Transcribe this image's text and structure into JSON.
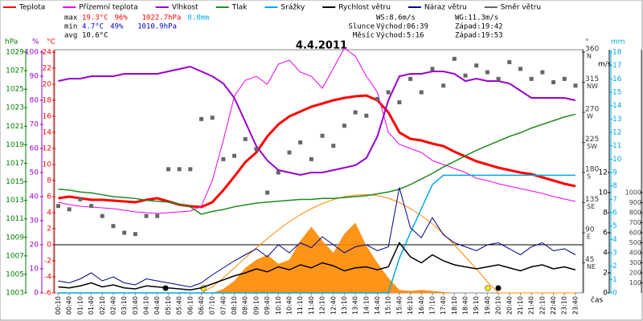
{
  "chart_data": {
    "type": "line",
    "title": "4.4.2011",
    "x_label": "čas",
    "x": [
      "00:10",
      "00:40",
      "01:10",
      "01:40",
      "02:10",
      "02:40",
      "03:10",
      "03:40",
      "04:10",
      "04:40",
      "05:10",
      "05:40",
      "06:10",
      "06:40",
      "07:10",
      "07:40",
      "08:10",
      "08:40",
      "09:10",
      "09:40",
      "10:10",
      "10:40",
      "11:10",
      "11:40",
      "12:10",
      "12:40",
      "13:10",
      "13:40",
      "14:10",
      "14:40",
      "15:10",
      "15:40",
      "16:10",
      "16:40",
      "17:10",
      "17:40",
      "18:10",
      "18:40",
      "19:10",
      "19:40",
      "20:10",
      "20:40",
      "21:10",
      "21:40",
      "22:10",
      "22:40",
      "23:10",
      "23:40"
    ],
    "stats": [
      {
        "label": "max",
        "values": [
          {
            "text": "19.3°C",
            "color": "#ff0000"
          },
          {
            "text": "96%",
            "color": "#ff0000"
          },
          {
            "text": "1022.7hPa",
            "color": "#ff0000"
          },
          {
            "text": "8.8mm",
            "color": "#00aadd"
          }
        ]
      },
      {
        "label": "min",
        "values": [
          {
            "text": "4.7°C",
            "color": "#0000cc"
          },
          {
            "text": "49%",
            "color": "#0000cc"
          },
          {
            "text": "1010.9hPa",
            "color": "#0000cc"
          }
        ]
      },
      {
        "label": "avg",
        "values": [
          {
            "text": "10.6°C",
            "color": "#000000"
          }
        ]
      }
    ],
    "info": [
      {
        "label": "",
        "rise": "WS:8.6m/s",
        "set": "WG:11.3m/s"
      },
      {
        "label": "Slunce",
        "rise": "Východ:06:39",
        "set": "Západ:19:42"
      },
      {
        "label": "Měsíc",
        "rise": "Východ:5:16",
        "set": "Západ:19:53"
      }
    ],
    "axes": [
      {
        "label": "hPa",
        "color": "#008000",
        "lim": [
          1003,
          1029
        ],
        "ticks": [
          1003,
          1005,
          1007,
          1009,
          1011,
          1013,
          1015,
          1017,
          1019,
          1021,
          1023,
          1025,
          1027,
          1029
        ]
      },
      {
        "label": "%",
        "color": "#9900cc",
        "lim": [
          0,
          100
        ],
        "ticks": [
          0,
          10,
          20,
          30,
          40,
          50,
          60,
          70,
          80,
          90,
          100
        ]
      },
      {
        "label": "°C",
        "color": "#ff0000",
        "lim": [
          -6,
          24
        ],
        "ticks": [
          -6,
          -4,
          -2,
          0,
          2,
          4,
          6,
          8,
          10,
          12,
          14,
          16,
          18,
          20,
          22,
          24
        ]
      },
      {
        "label": "°",
        "color": "#444444",
        "lim": [
          0,
          360
        ],
        "ticks": [
          {
            "value": 45,
            "label": "NE"
          },
          {
            "value": 90,
            "label": "E"
          },
          {
            "value": 135,
            "label": "SE"
          },
          {
            "value": 180,
            "label": "S"
          },
          {
            "value": 225,
            "label": "SW"
          },
          {
            "value": 270,
            "label": "W"
          },
          {
            "value": 315,
            "label": "NW"
          },
          {
            "value": 360,
            "label": "N"
          }
        ]
      },
      {
        "label": "m/s",
        "color": "#000000",
        "lim": [
          0,
          24
        ],
        "ticks": [
          0,
          2,
          4,
          6,
          8,
          10,
          12
        ]
      },
      {
        "label": "mm",
        "color": "#00aadd",
        "lim": [
          0,
          18
        ],
        "ticks": [
          0,
          1,
          2,
          3,
          4,
          5,
          6,
          7,
          8,
          9,
          10,
          11,
          12,
          13,
          14,
          15,
          16,
          17,
          18
        ]
      },
      {
        "color": "#444444",
        "lim": [
          0,
          2400
        ],
        "ticks": [
          100,
          200,
          300,
          400,
          500,
          600,
          700,
          800,
          900,
          1000
        ]
      }
    ],
    "series": [
      {
        "type": "area",
        "color": "#ff8800",
        "axis": 6,
        "values": [
          0,
          0,
          0,
          0,
          0,
          0,
          0,
          0,
          0,
          0,
          0,
          0,
          0,
          0,
          0,
          40,
          120,
          250,
          330,
          380,
          290,
          330,
          520,
          660,
          520,
          400,
          590,
          700,
          470,
          300,
          150,
          30,
          20,
          30,
          20,
          10,
          0,
          0,
          0,
          0,
          0,
          0,
          0,
          0,
          0,
          0,
          0,
          0
        ]
      },
      {
        "type": "line",
        "color": "#ff8800",
        "axis": 6,
        "values": [
          0,
          0,
          0,
          0,
          0,
          0,
          0,
          0,
          0,
          0,
          0,
          0,
          0,
          0,
          60,
          150,
          250,
          350,
          450,
          540,
          630,
          710,
          780,
          840,
          890,
          930,
          960,
          975,
          980,
          970,
          945,
          900,
          840,
          770,
          690,
          590,
          480,
          360,
          240,
          110,
          0,
          0,
          0,
          0,
          0,
          0,
          0,
          0
        ]
      },
      {
        "name": "Teplota",
        "type": "line",
        "color": "#ff0000",
        "axis": 2,
        "width": 3,
        "values": [
          5.8,
          6.0,
          5.8,
          5.6,
          5.6,
          5.5,
          5.4,
          5.3,
          5.6,
          5.8,
          5.4,
          5.0,
          4.8,
          4.7,
          5.3,
          6.8,
          8.5,
          10.3,
          11.5,
          13.5,
          15.0,
          16.0,
          16.6,
          17.2,
          17.6,
          18.0,
          18.3,
          18.5,
          18.6,
          18.0,
          16.5,
          14.0,
          13.2,
          13.0,
          12.6,
          12.3,
          11.6,
          11.0,
          10.4,
          10.0,
          9.6,
          9.3,
          9.0,
          8.8,
          8.4,
          8.0,
          7.6,
          7.3
        ]
      },
      {
        "name": "Přízemní teplota",
        "type": "line",
        "color": "#ee00ee",
        "axis": 2,
        "values": [
          5.3,
          5.0,
          4.8,
          4.7,
          4.6,
          4.5,
          4.3,
          4.1,
          4.0,
          3.9,
          4.0,
          4.1,
          4.2,
          4.8,
          8.0,
          13.0,
          18.5,
          20.5,
          21.0,
          20.0,
          22.5,
          23.0,
          21.5,
          21.0,
          19.5,
          22.0,
          24.5,
          23.5,
          21.0,
          19.0,
          14.0,
          12.5,
          12.0,
          11.5,
          10.5,
          10.0,
          9.5,
          9.0,
          8.3,
          8.0,
          7.6,
          7.3,
          7.0,
          6.7,
          6.4,
          6.0,
          5.7,
          5.4
        ]
      },
      {
        "name": "Vlhkost",
        "type": "line",
        "color": "#9900cc",
        "axis": 1,
        "width": 2,
        "values": [
          88,
          89,
          89,
          90,
          90,
          90,
          91,
          91,
          91,
          91,
          92,
          93,
          94,
          92,
          90,
          87,
          81,
          71,
          61,
          55,
          51,
          50,
          49,
          50,
          50,
          51,
          52,
          53,
          56,
          65,
          80,
          90,
          91,
          91,
          92,
          92,
          91,
          88,
          89,
          88,
          88,
          87,
          84,
          81,
          81,
          81,
          81,
          80
        ]
      },
      {
        "name": "Tlak",
        "type": "line",
        "color": "#228822",
        "axis": 0,
        "width": 1.5,
        "values": [
          1014.2,
          1014.1,
          1013.9,
          1013.8,
          1013.6,
          1013.4,
          1013.3,
          1013.2,
          1013.0,
          1012.9,
          1012.8,
          1012.6,
          1012.3,
          1011.5,
          1011.8,
          1012.0,
          1012.3,
          1012.5,
          1012.7,
          1012.8,
          1012.9,
          1013.0,
          1013.1,
          1013.1,
          1013.2,
          1013.2,
          1013.3,
          1013.4,
          1013.5,
          1013.7,
          1013.9,
          1014.2,
          1014.7,
          1015.3,
          1015.9,
          1016.6,
          1017.2,
          1017.8,
          1018.4,
          1018.9,
          1019.4,
          1019.9,
          1020.3,
          1020.8,
          1021.2,
          1021.6,
          1022.0,
          1022.3
        ]
      },
      {
        "name": "Srážky",
        "type": "line",
        "color": "#00aadd",
        "axis": 5,
        "width": 1.5,
        "values": [
          0,
          0,
          0,
          0,
          0,
          0,
          0,
          0,
          0,
          0,
          0,
          0,
          0,
          0,
          0,
          0,
          0,
          0,
          0,
          0,
          0,
          0,
          0,
          0,
          0,
          0,
          0,
          0,
          0,
          0,
          0,
          2.6,
          4.5,
          6.3,
          8.1,
          8.8,
          8.8,
          8.8,
          8.8,
          8.8,
          8.8,
          8.8,
          8.8,
          8.8,
          8.8,
          8.8,
          8.8,
          8.8
        ]
      },
      {
        "name": "Rychlost větru",
        "type": "line",
        "color": "#000000",
        "axis": 4,
        "width": 1.5,
        "values": [
          0.6,
          0.5,
          0.7,
          1.0,
          0.6,
          0.8,
          0.5,
          0.4,
          0.7,
          0.6,
          0.5,
          0.4,
          0.3,
          0.5,
          0.9,
          1.3,
          1.7,
          2.0,
          2.4,
          2.1,
          2.6,
          2.3,
          2.8,
          2.5,
          3.0,
          2.7,
          2.2,
          2.5,
          2.6,
          2.3,
          2.6,
          5.0,
          3.6,
          3.0,
          3.8,
          3.2,
          2.8,
          2.6,
          2.4,
          2.6,
          2.8,
          2.5,
          2.2,
          2.6,
          2.8,
          2.4,
          2.6,
          2.3
        ]
      },
      {
        "name": "Náraz větru",
        "type": "line",
        "color": "#000088",
        "axis": 4,
        "values": [
          1.2,
          1.0,
          1.4,
          2.0,
          1.2,
          1.6,
          1.0,
          0.8,
          1.4,
          1.2,
          1.0,
          0.8,
          0.6,
          1.0,
          1.8,
          2.5,
          3.2,
          3.8,
          4.4,
          3.6,
          4.8,
          4.0,
          5.0,
          4.5,
          5.6,
          4.8,
          4.0,
          4.6,
          4.8,
          4.2,
          4.6,
          10.5,
          6.5,
          5.5,
          7.5,
          5.8,
          5.0,
          4.6,
          4.2,
          4.8,
          5.0,
          4.4,
          3.8,
          4.6,
          5.0,
          4.2,
          4.4,
          3.8
        ]
      },
      {
        "name": "Směr větru",
        "type": "scatter",
        "color": "#666666",
        "axis": 3,
        "values": [
          130,
          125,
          140,
          130,
          115,
          100,
          90,
          88,
          115,
          115,
          185,
          185,
          185,
          260,
          262,
          200,
          205,
          230,
          215,
          150,
          180,
          210,
          225,
          200,
          235,
          220,
          250,
          270,
          265,
          290,
          300,
          285,
          320,
          300,
          335,
          310,
          350,
          325,
          340,
          330,
          320,
          345,
          335,
          320,
          330,
          315,
          320,
          310
        ]
      }
    ]
  }
}
